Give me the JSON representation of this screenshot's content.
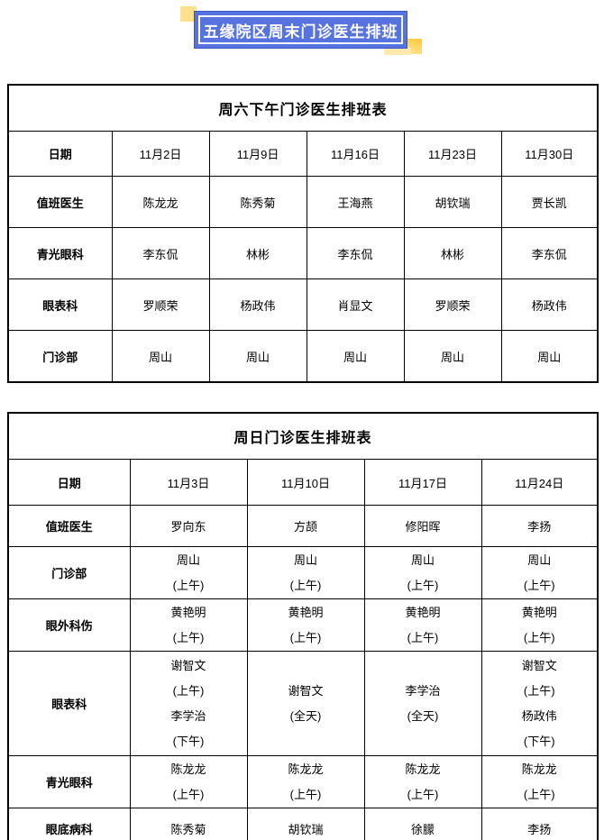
{
  "banner": {
    "title": "五缘院区周末门诊医生排班"
  },
  "colors": {
    "banner_blue": "#5673DF",
    "banner_border": "#3D57C9",
    "accent_light_yellow": "#FFE08C",
    "accent_gold": "#FFC937",
    "accent_pale_yellow": "#FFE9AC",
    "table_border": "#000000"
  },
  "saturday_table": {
    "title": "周六下午门诊医生排班表",
    "rows": [
      {
        "label": "日期",
        "cells": [
          "11月2日",
          "11月9日",
          "11月16日",
          "11月23日",
          "11月30日"
        ]
      },
      {
        "label": "值班医生",
        "cells": [
          "陈龙龙",
          "陈秀菊",
          "王海燕",
          "胡钦瑞",
          "贾长凯"
        ]
      },
      {
        "label": "青光眼科",
        "cells": [
          "李东侃",
          "林彬",
          "李东侃",
          "林彬",
          "李东侃"
        ]
      },
      {
        "label": "眼表科",
        "cells": [
          "罗顺荣",
          "杨政伟",
          "肖显文",
          "罗顺荣",
          "杨政伟"
        ]
      },
      {
        "label": "门诊部",
        "cells": [
          "周山",
          "周山",
          "周山",
          "周山",
          "周山"
        ]
      }
    ]
  },
  "sunday_table": {
    "title": "周日门诊医生排班表",
    "rows": [
      {
        "label": "日期",
        "cells": [
          "11月3日",
          "11月10日",
          "11月17日",
          "11月24日"
        ]
      },
      {
        "label": "值班医生",
        "cells": [
          "罗向东",
          "方颉",
          "修阳晖",
          "李扬"
        ]
      },
      {
        "label": "门诊部",
        "cells": [
          [
            "周山",
            "(上午)"
          ],
          [
            "周山",
            "(上午)"
          ],
          [
            "周山",
            "(上午)"
          ],
          [
            "周山",
            "(上午)"
          ]
        ]
      },
      {
        "label": "眼外科伤",
        "cells": [
          [
            "黄艳明",
            "(上午)"
          ],
          [
            "黄艳明",
            "(上午)"
          ],
          [
            "黄艳明",
            "(上午)"
          ],
          [
            "黄艳明",
            "(上午)"
          ]
        ]
      },
      {
        "label": "眼表科",
        "cells": [
          [
            "谢智文",
            "(上午)",
            "李学治",
            "(下午)"
          ],
          [
            "谢智文",
            "(全天)"
          ],
          [
            "李学治",
            "(全天)"
          ],
          [
            "谢智文",
            "(上午)",
            "杨政伟",
            "(下午)"
          ]
        ]
      },
      {
        "label": "青光眼科",
        "cells": [
          [
            "陈龙龙",
            "(上午)"
          ],
          [
            "陈龙龙",
            "(上午)"
          ],
          [
            "陈龙龙",
            "(上午)"
          ],
          [
            "陈龙龙",
            "(上午)"
          ]
        ]
      },
      {
        "label": "眼底病科",
        "cells": [
          "陈秀菊",
          "胡钦瑞",
          "徐朦",
          "李扬"
        ]
      }
    ]
  }
}
